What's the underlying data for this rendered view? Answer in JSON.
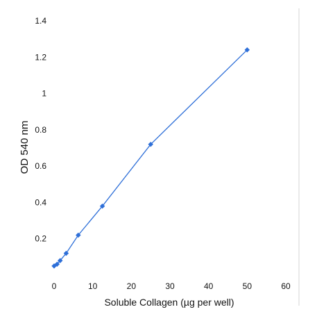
{
  "chart_data": {
    "type": "line",
    "xlabel": "Soluble Collagen (µg per well)",
    "ylabel": "OD 540 nm",
    "xlim": [
      0,
      60
    ],
    "ylim": [
      0,
      1.4
    ],
    "x_ticks": [
      "0",
      "10",
      "20",
      "30",
      "40",
      "50",
      "60"
    ],
    "y_ticks": [
      "",
      "0.2",
      "0.4",
      "0.6",
      "0.8",
      "1",
      "1.2",
      "1.4"
    ],
    "grid": false,
    "series": [
      {
        "x": [
          0,
          0.78,
          1.56,
          3.125,
          6.25,
          12.5,
          25,
          50
        ],
        "y": [
          0.05,
          0.06,
          0.08,
          0.12,
          0.22,
          0.38,
          0.72,
          1.24
        ],
        "color": "#2e6fd8",
        "marker": "diamond"
      }
    ]
  }
}
